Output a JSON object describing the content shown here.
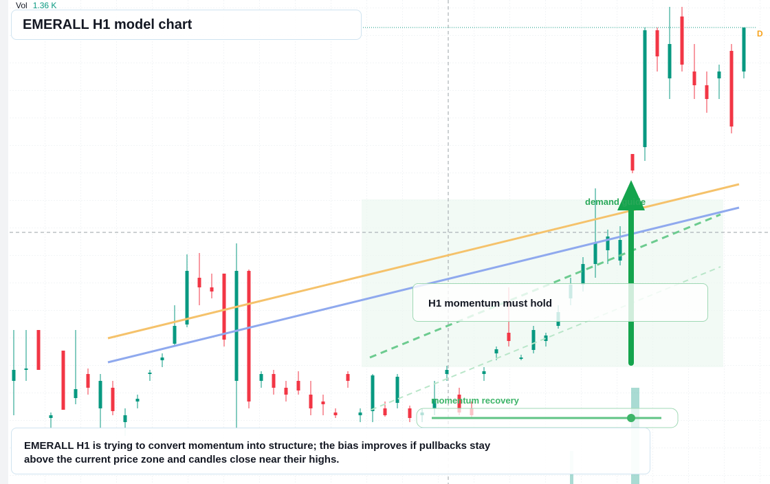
{
  "chart_data": {
    "type": "candlestick",
    "title": "EMERALL H1 model chart",
    "vol_label": "Vol",
    "vol_value": "1.36 K",
    "badge": "D",
    "annotations": [
      "demand guide",
      "H1 momentum must hold",
      "momentum recovery"
    ],
    "note": "EMERALL H1 is trying to convert momentum into structure; the bias improves if pullbacks stay above the current price zone and candles close near their highs.",
    "up_color": "#089981",
    "down_color": "#f23645",
    "ylim": [
      0,
      704
    ],
    "grid": true,
    "open": [
      150,
      166,
      224,
      96,
      194,
      125,
      160,
      110,
      140,
      90,
      120,
      160,
      180,
      204,
      232,
      300,
      286,
      306,
      150,
      310,
      150,
      160,
      140,
      150,
      130,
      120,
      104,
      160,
      100,
      106,
      110,
      118,
      110,
      100,
      110,
      160,
      130,
      110,
      160,
      190,
      220,
      182,
      195,
      208,
      230,
      270,
      290,
      320,
      340,
      325,
      480,
      490,
      660,
      590,
      680,
      600,
      580,
      590,
      630,
      600
    ],
    "high": [
      224,
      224,
      224,
      104,
      194,
      224,
      168,
      160,
      150,
      110,
      130,
      166,
      190,
      260,
      334,
      336,
      306,
      306,
      350,
      312,
      164,
      166,
      150,
      164,
      150,
      130,
      110,
      164,
      110,
      160,
      120,
      160,
      114,
      110,
      150,
      172,
      140,
      120,
      170,
      200,
      286,
      188,
      230,
      220,
      260,
      300,
      330,
      430,
      370,
      375,
      480,
      664,
      664,
      694,
      694,
      640,
      600,
      610,
      640,
      664
    ],
    "low": [
      100,
      150,
      166,
      80,
      108,
      116,
      130,
      80,
      100,
      70,
      110,
      150,
      170,
      200,
      228,
      260,
      270,
      200,
      80,
      110,
      140,
      130,
      120,
      130,
      100,
      100,
      96,
      140,
      90,
      90,
      98,
      110,
      90,
      90,
      100,
      150,
      100,
      96,
      150,
      180,
      200,
      180,
      190,
      200,
      226,
      260,
      280,
      300,
      320,
      318,
      452,
      470,
      600,
      560,
      600,
      560,
      540,
      560,
      510,
      590
    ],
    "close": [
      166,
      168,
      166,
      100,
      108,
      138,
      140,
      150,
      106,
      100,
      124,
      162,
      184,
      230,
      310,
      286,
      280,
      210,
      310,
      120,
      160,
      140,
      130,
      136,
      110,
      116,
      100,
      150,
      104,
      158,
      100,
      156,
      96,
      104,
      124,
      166,
      104,
      100,
      164,
      196,
      208,
      184,
      224,
      216,
      250,
      290,
      320,
      350,
      360,
      355,
      456,
      660,
      622,
      640,
      610,
      580,
      560,
      600,
      520,
      664
    ]
  }
}
